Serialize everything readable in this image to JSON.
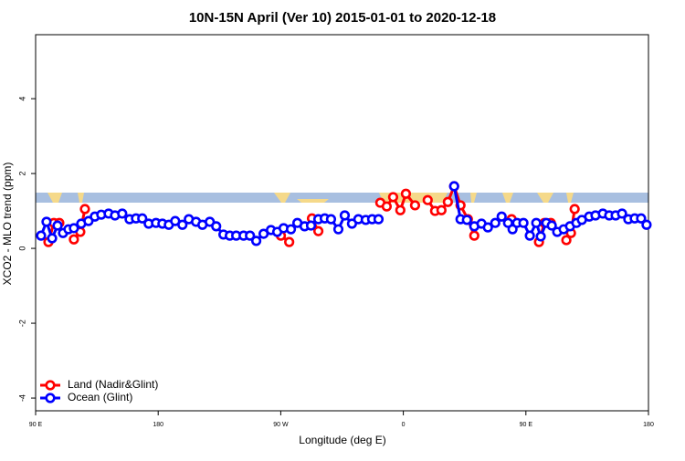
{
  "chart_data": {
    "type": "line",
    "title": "10N-15N April (Ver 10)   2015-01-01 to 2020-12-18",
    "x_label": "Longitude (deg E)",
    "y_label": "XCO2 - MLO trend (ppm)",
    "xlim": [
      90,
      540
    ],
    "ylim": [
      -4.34,
      5.71
    ],
    "xticks": [
      {
        "value": 90,
        "label": "90 E"
      },
      180,
      {
        "value": 270,
        "label": "90 W"
      },
      {
        "value": 360,
        "label": "0"
      },
      {
        "value": 450,
        "label": "90 E"
      },
      {
        "value": 540,
        "label": "180"
      }
    ],
    "yticks": [
      -4,
      -2,
      0,
      2,
      4
    ],
    "legend": "bottom-left",
    "series": [
      {
        "name": "Land (Nadir&Glint)",
        "color": "#ff0000",
        "x": [
          99.4,
          103.4,
          107.4,
          null,
          118.1,
          122.8,
          126.2,
          null,
          270.1,
          276.2,
          null,
          292.9,
          297.6,
          null,
          343.1,
          347.8,
          352.5,
          357.8,
          361.9,
          368.6,
          null,
          377.9,
          383.3,
          388.0,
          392.7,
          397.3,
          402.0,
          407.4,
          412.1,
          null,
          439.5,
          null,
          459.6,
          463.6,
          468.3,
          null,
          479.7,
          483.1,
          485.8
        ],
        "values": [
          0.17,
          0.68,
          0.68,
          null,
          0.24,
          0.44,
          1.05,
          null,
          0.34,
          0.17,
          null,
          0.8,
          0.46,
          null,
          1.22,
          1.12,
          1.37,
          1.02,
          1.46,
          1.15,
          null,
          1.29,
          1.0,
          1.02,
          1.24,
          1.66,
          1.15,
          0.78,
          0.34,
          null,
          0.78,
          null,
          0.17,
          0.68,
          0.68,
          null,
          0.22,
          0.41,
          1.05
        ]
      },
      {
        "name": "Ocean (Glint)",
        "color": "#0000ff",
        "x": [
          94.0,
          98.0,
          102.1,
          106.1,
          110.1,
          114.1,
          118.1,
          123.5,
          128.8,
          133.5,
          138.2,
          143.6,
          148.3,
          153.6,
          159.0,
          163.7,
          168.3,
          173.0,
          178.4,
          183.1,
          187.8,
          192.5,
          197.8,
          202.5,
          207.8,
          212.5,
          217.9,
          222.6,
          227.9,
          232.6,
          237.3,
          242.7,
          247.4,
          252.0,
          257.4,
          262.8,
          267.4,
          272.1,
          277.5,
          282.2,
          287.5,
          292.2,
          297.6,
          302.3,
          306.9,
          312.3,
          317.0,
          322.3,
          327.0,
          332.4,
          337.1,
          341.8,
          null,
          397.3,
          402.0,
          406.7,
          412.1,
          417.4,
          422.1,
          427.5,
          432.2,
          436.9,
          440.2,
          443.5,
          448.2,
          452.9,
          457.6,
          460.9,
          465.0,
          469.0,
          473.0,
          477.7,
          482.4,
          487.1,
          491.1,
          496.5,
          501.1,
          506.5,
          511.2,
          515.9,
          520.6,
          525.2,
          529.9,
          534.6,
          538.6
        ],
        "values": [
          0.34,
          0.71,
          0.27,
          0.61,
          0.41,
          0.51,
          0.54,
          0.66,
          0.73,
          0.85,
          0.9,
          0.93,
          0.88,
          0.93,
          0.78,
          0.8,
          0.8,
          0.66,
          0.68,
          0.66,
          0.63,
          0.73,
          0.63,
          0.78,
          0.71,
          0.63,
          0.71,
          0.59,
          0.37,
          0.34,
          0.34,
          0.34,
          0.34,
          0.2,
          0.39,
          0.49,
          0.44,
          0.54,
          0.51,
          0.68,
          0.59,
          0.61,
          0.78,
          0.8,
          0.78,
          0.51,
          0.88,
          0.66,
          0.78,
          0.76,
          0.78,
          0.78,
          null,
          1.66,
          0.78,
          0.76,
          0.59,
          0.66,
          0.56,
          0.68,
          0.85,
          0.68,
          0.51,
          0.68,
          0.68,
          0.34,
          0.68,
          0.32,
          0.68,
          0.61,
          0.44,
          0.51,
          0.59,
          0.68,
          0.76,
          0.85,
          0.88,
          0.93,
          0.88,
          0.88,
          0.93,
          0.78,
          0.8,
          0.8,
          0.63
        ]
      }
    ]
  }
}
